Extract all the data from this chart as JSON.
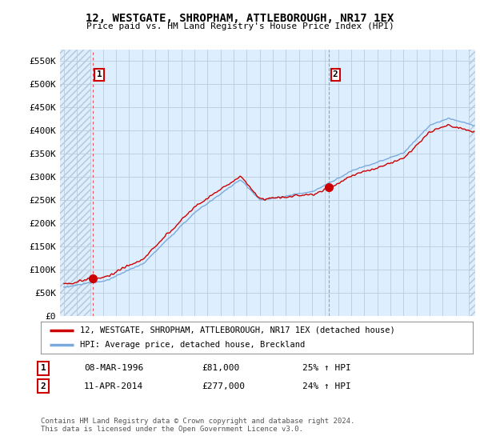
{
  "title": "12, WESTGATE, SHROPHAM, ATTLEBOROUGH, NR17 1EX",
  "subtitle": "Price paid vs. HM Land Registry's House Price Index (HPI)",
  "ylabel_ticks": [
    "£0",
    "£50K",
    "£100K",
    "£150K",
    "£200K",
    "£250K",
    "£300K",
    "£350K",
    "£400K",
    "£450K",
    "£500K",
    "£550K"
  ],
  "ytick_values": [
    0,
    50000,
    100000,
    150000,
    200000,
    250000,
    300000,
    350000,
    400000,
    450000,
    500000,
    550000
  ],
  "ylim": [
    0,
    575000
  ],
  "xlim_start": 1993.7,
  "xlim_end": 2025.5,
  "sale1_x": 1996.19,
  "sale1_y": 81000,
  "sale1_label": "1",
  "sale2_x": 2014.28,
  "sale2_y": 277000,
  "sale2_label": "2",
  "red_line_color": "#cc0000",
  "blue_line_color": "#7aaadd",
  "dashed1_color": "#dd4444",
  "dashed2_color": "#888888",
  "plot_bg_color": "#ddeeff",
  "hatch_fill_color": "#ddeeff",
  "legend_red_label": "12, WESTGATE, SHROPHAM, ATTLEBOROUGH, NR17 1EX (detached house)",
  "legend_blue_label": "HPI: Average price, detached house, Breckland",
  "annotation1_date": "08-MAR-1996",
  "annotation1_price": "£81,000",
  "annotation1_hpi": "25% ↑ HPI",
  "annotation2_date": "11-APR-2014",
  "annotation2_price": "£277,000",
  "annotation2_hpi": "24% ↑ HPI",
  "footer": "Contains HM Land Registry data © Crown copyright and database right 2024.\nThis data is licensed under the Open Government Licence v3.0.",
  "background_color": "#ffffff",
  "grid_color": "#bbccdd"
}
